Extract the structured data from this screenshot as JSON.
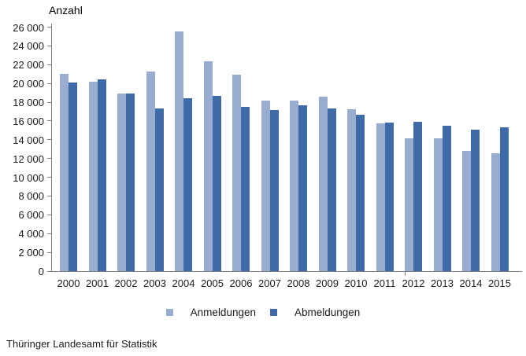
{
  "title": "Anzahl",
  "footer_source": "Thüringer Landesamt für Statistik",
  "colors": {
    "anmeldungen": "#99ADD1",
    "abmeldungen": "#3E6AA8",
    "axis": "#7f7f7f",
    "text": "#1a1a1a"
  },
  "legend": {
    "items": [
      {
        "label": "Anmeldungen",
        "color": "#99ADD1"
      },
      {
        "label": "Abmeldungen",
        "color": "#3E6AA8"
      }
    ]
  },
  "chart_data": {
    "type": "bar",
    "title": "Anzahl",
    "ylabel": "Anzahl",
    "xlabel": "",
    "categories": [
      "2000",
      "2001",
      "2002",
      "2003",
      "2004",
      "2005",
      "2006",
      "2007",
      "2008",
      "2009",
      "2010",
      "2011",
      "2012",
      "2013",
      "2014",
      "2015"
    ],
    "series": [
      {
        "name": "Anmeldungen",
        "color": "#99ADD1",
        "values": [
          21050,
          20200,
          18950,
          21250,
          25500,
          22350,
          20900,
          18200,
          18150,
          18550,
          17250,
          15750,
          14150,
          14150,
          12850,
          12600
        ]
      },
      {
        "name": "Abmeldungen",
        "color": "#3E6AA8",
        "values": [
          20100,
          20450,
          18950,
          17350,
          18400,
          18700,
          17500,
          17150,
          17700,
          17350,
          16700,
          15850,
          15950,
          15500,
          15050,
          15350
        ]
      }
    ],
    "ylim": [
      0,
      26000
    ],
    "ytick_step": 2000,
    "ytick_format": "space-thousands",
    "grid": false,
    "legend_position": "bottom",
    "source": "Thüringer Landesamt für Statistik"
  }
}
